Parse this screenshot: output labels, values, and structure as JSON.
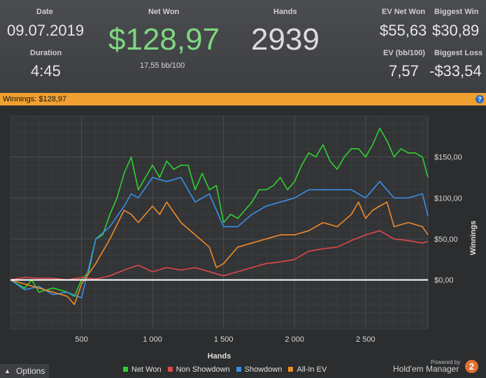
{
  "stats": {
    "date_label": "Date",
    "date_value": "09.07.2019",
    "duration_label": "Duration",
    "duration_value": "4:45",
    "net_won_label": "Net Won",
    "net_won_value": "$128,97",
    "net_won_sub": "17,55 bb/100",
    "hands_label": "Hands",
    "hands_value": "2939",
    "ev_net_won_label": "EV Net Won",
    "ev_net_won_value": "$55,63",
    "biggest_win_label": "Biggest Win",
    "biggest_win_value": "$30,89",
    "ev_bb_label": "EV (bb/100)",
    "ev_bb_value": "7,57",
    "biggest_loss_label": "Biggest Loss",
    "biggest_loss_value": "-$33,54"
  },
  "banner": {
    "text": "Winnings: $128,97",
    "help_icon": "?"
  },
  "bottom": {
    "options_label": "Options",
    "powered_by": "Powered by",
    "brand": "Hold'em Manager",
    "badge": "2"
  },
  "colors": {
    "net_won": "#2fd12f",
    "non_showdown": "#e04848",
    "showdown": "#3a8fe6",
    "allin_ev": "#ef8a2a",
    "zero_line": "#ffffff",
    "banner": "#f0a030"
  },
  "chart_data": {
    "type": "line",
    "xlabel": "Hands",
    "ylabel": "Winnings",
    "xlim": [
      0,
      2939
    ],
    "ylim": [
      -60,
      200
    ],
    "x_ticks": [
      500,
      1000,
      1500,
      2000,
      2500
    ],
    "x_tick_labels": [
      "500",
      "1 000",
      "1 500",
      "2 000",
      "2 500"
    ],
    "y_ticks": [
      0,
      50,
      100,
      150
    ],
    "y_tick_labels": [
      "$0,00",
      "$50,00",
      "$100,00",
      "$150,00"
    ],
    "grid": true,
    "legend_position": "bottom",
    "series": [
      {
        "name": "Net Won",
        "color": "#2fd12f",
        "x": [
          0,
          100,
          150,
          200,
          300,
          400,
          450,
          500,
          550,
          600,
          650,
          700,
          750,
          800,
          850,
          900,
          950,
          1000,
          1050,
          1100,
          1150,
          1200,
          1250,
          1300,
          1350,
          1400,
          1450,
          1500,
          1550,
          1600,
          1650,
          1700,
          1750,
          1800,
          1850,
          1900,
          1950,
          2000,
          2050,
          2100,
          2150,
          2200,
          2250,
          2300,
          2350,
          2400,
          2450,
          2500,
          2550,
          2600,
          2650,
          2700,
          2750,
          2800,
          2850,
          2900,
          2939
        ],
        "y": [
          0,
          -10,
          0,
          -15,
          -10,
          -15,
          -20,
          0,
          10,
          50,
          55,
          80,
          100,
          130,
          150,
          110,
          125,
          140,
          125,
          145,
          135,
          140,
          140,
          110,
          130,
          110,
          115,
          70,
          80,
          75,
          85,
          95,
          110,
          110,
          115,
          125,
          110,
          120,
          140,
          155,
          150,
          165,
          145,
          135,
          150,
          160,
          160,
          150,
          165,
          185,
          170,
          150,
          160,
          155,
          155,
          150,
          125
        ]
      },
      {
        "name": "Non Showdown",
        "color": "#e04848",
        "x": [
          0,
          100,
          200,
          300,
          400,
          500,
          600,
          700,
          800,
          900,
          1000,
          1100,
          1200,
          1300,
          1400,
          1500,
          1600,
          1700,
          1800,
          1900,
          2000,
          2100,
          2200,
          2300,
          2400,
          2500,
          2600,
          2700,
          2800,
          2900,
          2939
        ],
        "y": [
          0,
          3,
          2,
          2,
          0,
          3,
          1,
          5,
          12,
          18,
          10,
          15,
          12,
          15,
          10,
          5,
          10,
          15,
          20,
          22,
          25,
          35,
          38,
          40,
          48,
          55,
          60,
          50,
          48,
          45,
          47
        ]
      },
      {
        "name": "Showdown",
        "color": "#3a8fe6",
        "x": [
          0,
          100,
          200,
          300,
          400,
          500,
          600,
          700,
          800,
          850,
          900,
          1000,
          1100,
          1200,
          1300,
          1400,
          1500,
          1600,
          1700,
          1800,
          1900,
          2000,
          2100,
          2200,
          2300,
          2400,
          2500,
          2600,
          2700,
          2800,
          2900,
          2939
        ],
        "y": [
          0,
          -12,
          -8,
          -18,
          -15,
          -22,
          50,
          65,
          90,
          105,
          100,
          125,
          120,
          125,
          95,
          105,
          65,
          65,
          80,
          90,
          95,
          100,
          110,
          110,
          110,
          110,
          100,
          120,
          100,
          100,
          105,
          78
        ]
      },
      {
        "name": "All-In EV",
        "color": "#ef8a2a",
        "x": [
          0,
          100,
          200,
          300,
          400,
          450,
          500,
          600,
          700,
          800,
          850,
          900,
          1000,
          1050,
          1100,
          1200,
          1300,
          1400,
          1450,
          1500,
          1600,
          1700,
          1800,
          1900,
          2000,
          2100,
          2200,
          2300,
          2400,
          2450,
          2500,
          2550,
          2600,
          2650,
          2700,
          2800,
          2900,
          2939
        ],
        "y": [
          0,
          -5,
          -10,
          -15,
          -20,
          -30,
          -5,
          20,
          50,
          85,
          80,
          70,
          90,
          80,
          95,
          70,
          55,
          40,
          15,
          20,
          40,
          45,
          50,
          55,
          55,
          60,
          70,
          65,
          80,
          95,
          75,
          85,
          90,
          95,
          65,
          70,
          65,
          55
        ]
      }
    ]
  }
}
